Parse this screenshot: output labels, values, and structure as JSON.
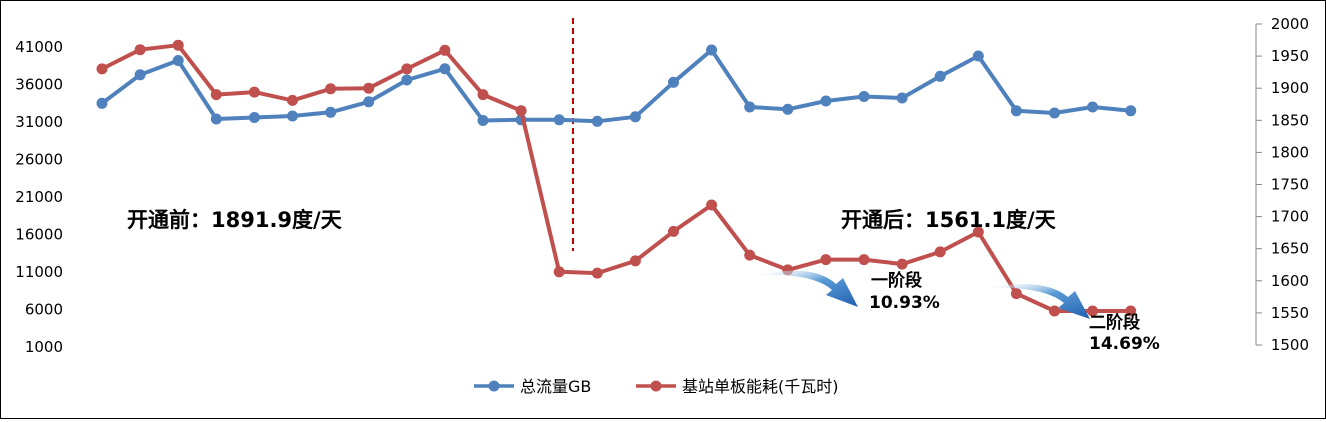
{
  "chart_data": {
    "type": "line",
    "title": "",
    "xlabel": "",
    "ylabel": "",
    "y_left": {
      "ticks": [
        "1000",
        "6000",
        "11000",
        "16000",
        "21000",
        "26000",
        "31000",
        "36000",
        "41000"
      ],
      "range": [
        1000,
        41000
      ]
    },
    "y_right": {
      "ticks": [
        "1500",
        "1550",
        "1600",
        "1650",
        "1700",
        "1750",
        "1800",
        "1850",
        "1900",
        "1950",
        "2000"
      ],
      "range": [
        1500,
        2000
      ]
    },
    "series": [
      {
        "name": "总流量GB",
        "axis": "left",
        "color": "#4f81bd",
        "values": [
          33500,
          37300,
          39200,
          31400,
          31600,
          31800,
          32300,
          33700,
          36600,
          38100,
          31200,
          31300,
          31300,
          31100,
          31700,
          36300,
          40600,
          33000,
          32700,
          33800,
          34400,
          34200,
          37100,
          39800,
          32500,
          32200,
          33000,
          32500
        ]
      },
      {
        "name": "基站单板能耗(千瓦时)",
        "axis": "right",
        "color": "#c0504d",
        "values": [
          1930,
          1960,
          1967,
          1890,
          1894,
          1881,
          1899,
          1900,
          1930,
          1959,
          1890,
          1865,
          1614,
          1612,
          1631,
          1677,
          1718,
          1640,
          1617,
          1633,
          1633,
          1626,
          1645,
          1676,
          1580,
          1553,
          1553,
          1553
        ]
      }
    ],
    "divider_after_index": 11,
    "annotations": {
      "before": "开通前：1891.9度/天",
      "after": "开通后：1561.1度/天",
      "stage1": {
        "line1": "一阶段",
        "line2": "10.93%"
      },
      "stage2": {
        "line1": "二阶段",
        "line2": "14.69%"
      }
    },
    "legend_position": "bottom-center",
    "grid": false,
    "divider_color": "#c00000",
    "arrow_color": "#2f6fc7"
  }
}
